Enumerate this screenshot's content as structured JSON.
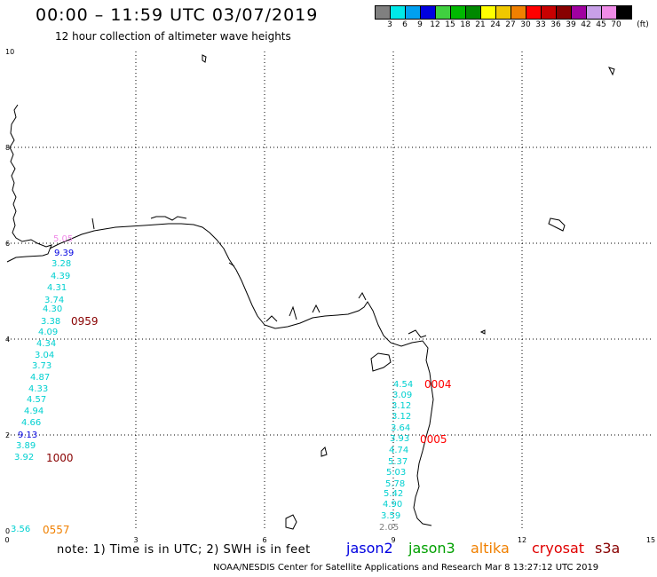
{
  "header": {
    "title": "00:00 – 11:59 UTC 03/07/2019",
    "subtitle": "12 hour collection of altimeter wave heights"
  },
  "legend": {
    "unit": "(ft)",
    "colors": [
      "#808080",
      "#00e8e8",
      "#00a0f0",
      "#0000e0",
      "#40d040",
      "#00b800",
      "#008800",
      "#ffff00",
      "#f0c800",
      "#f08000",
      "#ff0000",
      "#c80000",
      "#880000",
      "#a000a0",
      "#c8a0e8",
      "#f08ce8",
      "#000000"
    ],
    "labels": [
      "3",
      "6",
      "9",
      "12",
      "15",
      "18",
      "21",
      "24",
      "27",
      "30",
      "33",
      "36",
      "39",
      "42",
      "45",
      "70"
    ]
  },
  "axes": {
    "x_ticks": [
      "0",
      "3",
      "6",
      "9",
      "12",
      "15"
    ],
    "y_ticks": [
      "0",
      "2",
      "4",
      "6",
      "8",
      "10"
    ]
  },
  "observations": [
    {
      "text": "5.05",
      "color": "#f08ce8"
    },
    {
      "text": "9.39",
      "color": "#0000e0"
    },
    {
      "text": "3.28",
      "color": "#00d0d0"
    },
    {
      "text": "4.39",
      "color": "#00d0d0"
    },
    {
      "text": "4.31",
      "color": "#00d0d0"
    },
    {
      "text": "3.74",
      "color": "#00d0d0"
    },
    {
      "text": "4.30",
      "color": "#00d0d0"
    },
    {
      "text": "3.38",
      "color": "#00d0d0"
    },
    {
      "text": "4.09",
      "color": "#00d0d0"
    },
    {
      "text": "4.34",
      "color": "#00d0d0"
    },
    {
      "text": "3.04",
      "color": "#00d0d0"
    },
    {
      "text": "3.73",
      "color": "#00d0d0"
    },
    {
      "text": "4.87",
      "color": "#00d0d0"
    },
    {
      "text": "4.33",
      "color": "#00d0d0"
    },
    {
      "text": "4.57",
      "color": "#00d0d0"
    },
    {
      "text": "4.94",
      "color": "#00d0d0"
    },
    {
      "text": "4.66",
      "color": "#00d0d0"
    },
    {
      "text": "9.13",
      "color": "#0000e0"
    },
    {
      "text": "3.89",
      "color": "#00d0d0"
    },
    {
      "text": "3.92",
      "color": "#00d0d0"
    },
    {
      "text": "3.56",
      "color": "#00d0d0"
    },
    {
      "text": "4.54",
      "color": "#00d0d0"
    },
    {
      "text": "3.09",
      "color": "#00d0d0"
    },
    {
      "text": "3.12",
      "color": "#00d0d0"
    },
    {
      "text": "3.12",
      "color": "#00d0d0"
    },
    {
      "text": "3.64",
      "color": "#00d0d0"
    },
    {
      "text": "3.93",
      "color": "#00d0d0"
    },
    {
      "text": "4.74",
      "color": "#00d0d0"
    },
    {
      "text": "5.37",
      "color": "#00d0d0"
    },
    {
      "text": "5.03",
      "color": "#00d0d0"
    },
    {
      "text": "5.78",
      "color": "#00d0d0"
    },
    {
      "text": "5.42",
      "color": "#00d0d0"
    },
    {
      "text": "4.90",
      "color": "#00d0d0"
    },
    {
      "text": "3.59",
      "color": "#00d0d0"
    },
    {
      "text": "2.05",
      "color": "#808080"
    }
  ],
  "time_labels": [
    {
      "text": "0959",
      "color": "#880000"
    },
    {
      "text": "1000",
      "color": "#880000"
    },
    {
      "text": "0557",
      "color": "#f08000"
    },
    {
      "text": "0004",
      "color": "#ff0000"
    },
    {
      "text": "0005",
      "color": "#ff0000"
    }
  ],
  "footer": {
    "note": "note: 1) Time is in UTC; 2) SWH is in feet",
    "satellites": [
      {
        "name": "jason2",
        "color": "#0000e0"
      },
      {
        "name": "jason3",
        "color": "#00a000"
      },
      {
        "name": "altika",
        "color": "#f08000"
      },
      {
        "name": "cryosat",
        "color": "#e00000"
      },
      {
        "name": "s3a",
        "color": "#880000"
      }
    ],
    "credit": "NOAA/NESDIS Center for Satellite Applications and Research    Mar  8 13:27:12 UTC 2019"
  }
}
